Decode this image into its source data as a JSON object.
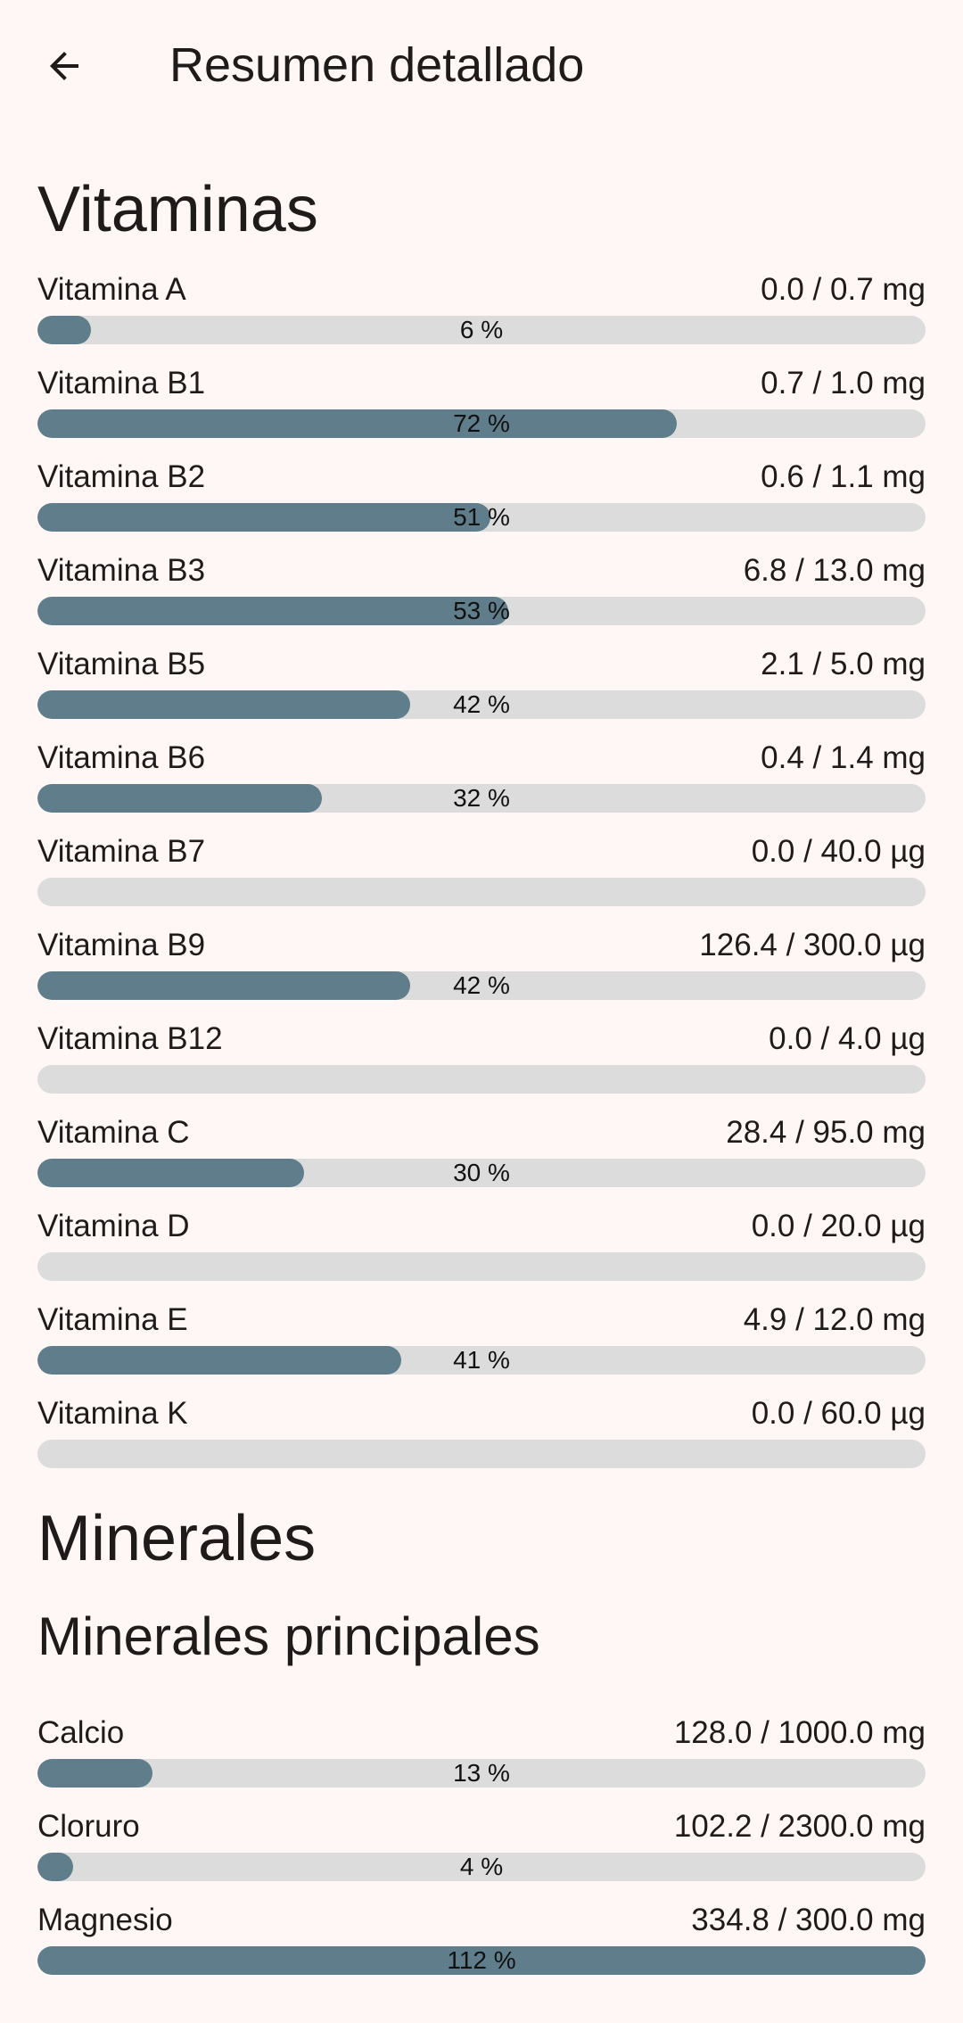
{
  "header": {
    "title": "Resumen detallado",
    "back_icon": "arrow-back-icon"
  },
  "colors": {
    "background": "#FFF7F5",
    "bar_track": "#DCDCDC",
    "bar_fill": "#607D8B",
    "text": "#1F1B1B"
  },
  "vitamins": {
    "title": "Vitaminas",
    "items": [
      {
        "name": "Vitamina A",
        "amount": "0.0 / 0.7 mg",
        "percent_label": "6 %",
        "progress": 0.06
      },
      {
        "name": "Vitamina B1",
        "amount": "0.7 / 1.0 mg",
        "percent_label": "72 %",
        "progress": 0.72
      },
      {
        "name": "Vitamina B2",
        "amount": "0.6 / 1.1 mg",
        "percent_label": "51 %",
        "progress": 0.51
      },
      {
        "name": "Vitamina B3",
        "amount": "6.8 / 13.0 mg",
        "percent_label": "53 %",
        "progress": 0.53
      },
      {
        "name": "Vitamina B5",
        "amount": "2.1 / 5.0 mg",
        "percent_label": "42 %",
        "progress": 0.42
      },
      {
        "name": "Vitamina B6",
        "amount": "0.4 / 1.4 mg",
        "percent_label": "32 %",
        "progress": 0.32
      },
      {
        "name": "Vitamina B7",
        "amount": "0.0 / 40.0 µg",
        "percent_label": "",
        "progress": 0
      },
      {
        "name": "Vitamina B9",
        "amount": "126.4 / 300.0 µg",
        "percent_label": "42 %",
        "progress": 0.42
      },
      {
        "name": "Vitamina B12",
        "amount": "0.0 / 4.0 µg",
        "percent_label": "",
        "progress": 0
      },
      {
        "name": "Vitamina C",
        "amount": "28.4 / 95.0 mg",
        "percent_label": "30 %",
        "progress": 0.3
      },
      {
        "name": "Vitamina D",
        "amount": "0.0 / 20.0 µg",
        "percent_label": "",
        "progress": 0
      },
      {
        "name": "Vitamina E",
        "amount": "4.9 / 12.0 mg",
        "percent_label": "41 %",
        "progress": 0.41
      },
      {
        "name": "Vitamina K",
        "amount": "0.0 / 60.0 µg",
        "percent_label": "",
        "progress": 0
      }
    ]
  },
  "minerals": {
    "title": "Minerales",
    "main": {
      "title": "Minerales principales",
      "items": [
        {
          "name": "Calcio",
          "amount": "128.0 / 1000.0 mg",
          "percent_label": "13 %",
          "progress": 0.13
        },
        {
          "name": "Cloruro",
          "amount": "102.2 / 2300.0 mg",
          "percent_label": "4 %",
          "progress": 0.04
        },
        {
          "name": "Magnesio",
          "amount": "334.8 / 300.0 mg",
          "percent_label": "112 %",
          "progress": 1.0
        }
      ]
    }
  }
}
